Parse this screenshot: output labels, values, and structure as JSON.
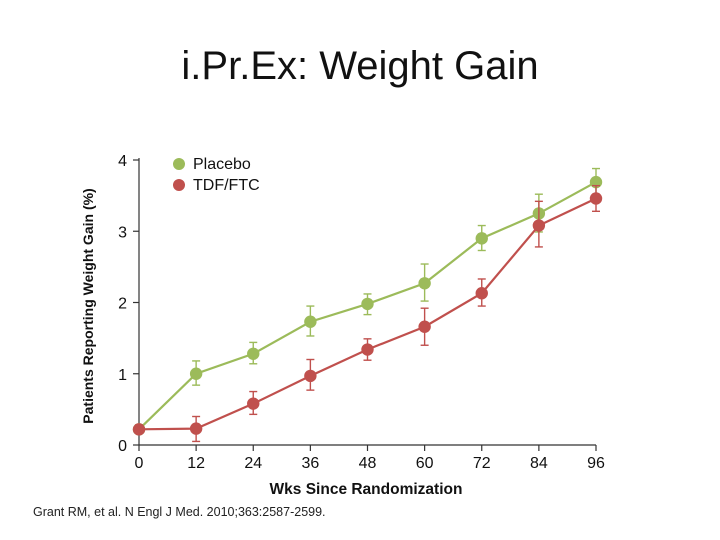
{
  "title": "i.Pr.Ex: Weight Gain",
  "citation": "Grant RM, et al. N Engl J Med. 2010;363:2587-2599.",
  "chart_data": {
    "type": "line",
    "title": "i.Pr.Ex: Weight Gain",
    "xlabel": "Wks Since Randomization",
    "ylabel": "Patients Reporting Weight Gain (%)",
    "x": [
      0,
      12,
      24,
      36,
      48,
      60,
      72,
      84,
      96
    ],
    "xticks": [
      0,
      12,
      24,
      36,
      48,
      60,
      72,
      84,
      96
    ],
    "yticks": [
      0,
      1,
      2,
      3,
      4
    ],
    "xlim": [
      0,
      96
    ],
    "ylim": [
      0,
      4
    ],
    "grid": false,
    "legend_position": "top-left",
    "series": [
      {
        "name": "Placebo",
        "color": "#9cbb5a",
        "values": [
          0.22,
          1.0,
          1.28,
          1.73,
          1.98,
          2.27,
          2.9,
          3.25,
          3.69
        ],
        "err_low": [
          0.2,
          0.84,
          1.14,
          1.53,
          1.83,
          2.02,
          2.73,
          2.99,
          3.5
        ],
        "err_high": [
          0.24,
          1.18,
          1.44,
          1.95,
          2.12,
          2.54,
          3.08,
          3.52,
          3.88
        ]
      },
      {
        "name": "TDF/FTC",
        "color": "#c0504d",
        "values": [
          0.22,
          0.23,
          0.58,
          0.97,
          1.34,
          1.66,
          2.13,
          3.08,
          3.46
        ],
        "err_low": [
          0.2,
          0.05,
          0.43,
          0.77,
          1.19,
          1.4,
          1.95,
          2.78,
          3.28
        ],
        "err_high": [
          0.24,
          0.4,
          0.75,
          1.2,
          1.49,
          1.92,
          2.33,
          3.42,
          3.64
        ]
      }
    ]
  }
}
